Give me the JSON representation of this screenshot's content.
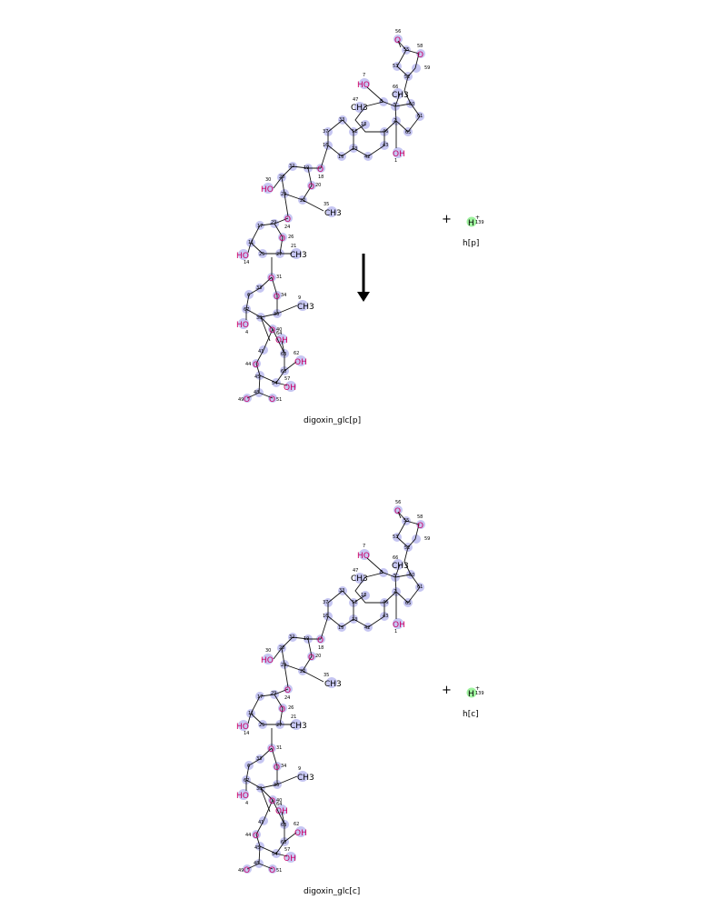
{
  "colors": {
    "atom_highlight": "#c6c6f2",
    "proton_highlight": "#9ef29e",
    "oxygen": "#ff2222",
    "bond": "#111111"
  },
  "reaction": {
    "plus_sign": "+",
    "arrow": "down-arrow",
    "reactant": {
      "name": "digoxin_glc[p]",
      "atoms": {
        "1": "1",
        "4": "4",
        "7": "7",
        "9": "9",
        "11": "11",
        "13": "13",
        "14": "14",
        "15": "15",
        "16": "16",
        "17": "17",
        "18": "18",
        "19": "19",
        "20": "20",
        "21": "21",
        "22": "22",
        "23": "23",
        "24": "24",
        "25": "25",
        "26": "26",
        "27": "27",
        "28": "28",
        "29": "29",
        "30": "30",
        "31": "31",
        "32": "32",
        "33": "33",
        "34": "34",
        "35": "35",
        "36": "36",
        "37": "37",
        "38": "38",
        "39": "39",
        "40": "40",
        "41": "41",
        "42": "42",
        "43": "43",
        "44": "44",
        "45": "45",
        "46": "46",
        "47": "47",
        "48": "48",
        "49": "49",
        "50": "50",
        "51": "51",
        "52": "52",
        "53": "53",
        "54": "54",
        "55": "55",
        "56": "56",
        "57": "57",
        "58": "58",
        "59": "59",
        "60": "60",
        "61": "61",
        "62": "62",
        "63": "63",
        "64": "64",
        "65": "65",
        "66": "66",
        "67": "67",
        "2": "2",
        "5": "5",
        "6": "6",
        "8": "8",
        "3": "3",
        "12": "12"
      },
      "groups": {
        "ch3": "CH3",
        "ho": "HO",
        "oh": "OH",
        "o": "O"
      }
    },
    "proton_reactant": {
      "name": "h[p]",
      "symbol": "H",
      "charge": "+",
      "atom_number": "139"
    },
    "product": {
      "name": "digoxin_glc[c]"
    },
    "proton_product": {
      "name": "h[c]",
      "symbol": "H",
      "charge": "+",
      "atom_number": "139"
    }
  }
}
